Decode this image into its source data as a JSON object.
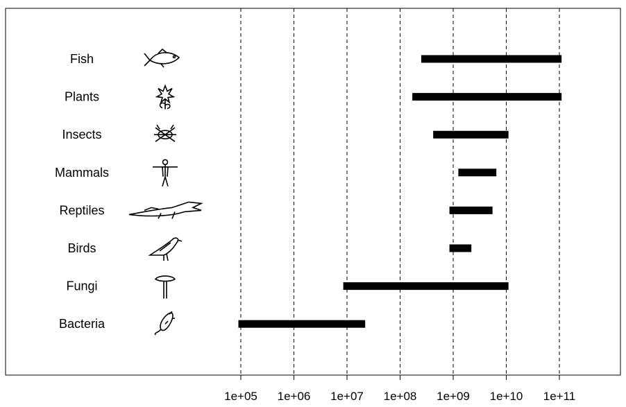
{
  "chart_data": {
    "type": "bar",
    "orientation": "horizontal",
    "x_scale": "log",
    "xlim": [
      10000.0,
      1000000000000.0
    ],
    "grid": true,
    "categories": [
      "Fish",
      "Plants",
      "Insects",
      "Mammals",
      "Reptiles",
      "Birds",
      "Fungi",
      "Bacteria"
    ],
    "icons": [
      "fish-icon",
      "plant-icon",
      "insect-icon",
      "human-icon",
      "crocodile-icon",
      "bird-icon",
      "mushroom-icon",
      "bacterium-icon"
    ],
    "ranges": [
      {
        "category": "Fish",
        "low": 250000000,
        "high": 110000000000
      },
      {
        "category": "Plants",
        "low": 170000000,
        "high": 110000000000
      },
      {
        "category": "Insects",
        "low": 420000000,
        "high": 11000000000
      },
      {
        "category": "Mammals",
        "low": 1250000000,
        "high": 6500000000
      },
      {
        "category": "Reptiles",
        "low": 850000000,
        "high": 5500000000
      },
      {
        "category": "Birds",
        "low": 850000000,
        "high": 2200000000
      },
      {
        "category": "Fungi",
        "low": 8500000,
        "high": 11000000000
      },
      {
        "category": "Bacteria",
        "low": 90000,
        "high": 22000000
      }
    ],
    "x_ticks": [
      {
        "value": 100000,
        "label": "1e+05"
      },
      {
        "value": 1000000,
        "label": "1e+06"
      },
      {
        "value": 10000000,
        "label": "1e+07"
      },
      {
        "value": 100000000,
        "label": "1e+08"
      },
      {
        "value": 1000000000,
        "label": "1e+09"
      },
      {
        "value": 10000000000,
        "label": "1e+10"
      },
      {
        "value": 100000000000,
        "label": "1e+11"
      }
    ],
    "title": "",
    "xlabel": "",
    "ylabel": ""
  }
}
